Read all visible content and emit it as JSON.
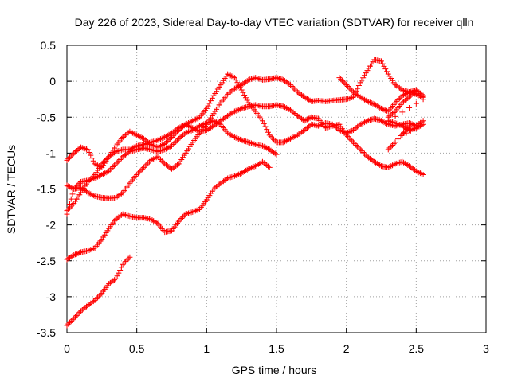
{
  "chart_data": {
    "type": "scatter",
    "title": "Day 226 of 2023, Sidereal Day-to-day VTEC variation (SDTVAR) for receiver qlln",
    "xlabel": "GPS time / hours",
    "ylabel": "SDTVAR / TECUs",
    "xlim": [
      0,
      3
    ],
    "ylim": [
      -3.5,
      0.5
    ],
    "xticks": [
      "0",
      "0.5",
      "1",
      "1.5",
      "2",
      "2.5",
      "3"
    ],
    "yticks": [
      "0.5",
      "0",
      "-0.5",
      "-1",
      "-1.5",
      "-2",
      "-2.5",
      "-3",
      "-3.5"
    ],
    "grid": true,
    "marker": "+",
    "color": "#ff0000",
    "series": [
      {
        "values": [
          [
            0.0,
            -1.1
          ],
          [
            0.05,
            -1.0
          ],
          [
            0.1,
            -0.92
          ],
          [
            0.15,
            -0.95
          ],
          [
            0.2,
            -1.15
          ],
          [
            0.25,
            -1.2
          ],
          [
            0.3,
            -1.05
          ],
          [
            0.35,
            -0.9
          ],
          [
            0.4,
            -0.78
          ],
          [
            0.45,
            -0.7
          ],
          [
            0.5,
            -0.75
          ],
          [
            0.55,
            -0.8
          ],
          [
            0.6,
            -0.88
          ],
          [
            0.65,
            -0.92
          ],
          [
            0.7,
            -0.87
          ],
          [
            0.75,
            -0.78
          ],
          [
            0.8,
            -0.68
          ],
          [
            0.85,
            -0.6
          ],
          [
            0.9,
            -0.55
          ],
          [
            0.95,
            -0.5
          ],
          [
            1.0,
            -0.38
          ],
          [
            1.05,
            -0.2
          ],
          [
            1.1,
            -0.05
          ],
          [
            1.15,
            0.1
          ],
          [
            1.2,
            0.05
          ],
          [
            1.25,
            -0.12
          ],
          [
            1.3,
            -0.3
          ],
          [
            1.35,
            -0.42
          ],
          [
            1.4,
            -0.55
          ],
          [
            1.45,
            -0.75
          ],
          [
            1.5,
            -0.85
          ],
          [
            1.55,
            -0.85
          ],
          [
            1.6,
            -0.8
          ],
          [
            1.65,
            -0.75
          ],
          [
            1.7,
            -0.68
          ],
          [
            1.75,
            -0.6
          ],
          [
            1.8,
            -0.62
          ],
          [
            1.85,
            -0.58
          ],
          [
            1.9,
            -0.6
          ],
          [
            1.95,
            -0.68
          ],
          [
            2.0,
            -0.72
          ],
          [
            2.05,
            -0.68
          ],
          [
            2.1,
            -0.6
          ],
          [
            2.15,
            -0.55
          ],
          [
            2.2,
            -0.52
          ],
          [
            2.25,
            -0.55
          ],
          [
            2.3,
            -0.6
          ],
          [
            2.35,
            -0.62
          ],
          [
            2.4,
            -0.6
          ],
          [
            2.45,
            -0.58
          ],
          [
            2.5,
            -0.62
          ],
          [
            2.55,
            -0.55
          ]
        ]
      },
      {
        "values": [
          [
            0.0,
            -1.45
          ],
          [
            0.05,
            -1.5
          ],
          [
            0.1,
            -1.48
          ],
          [
            0.15,
            -1.55
          ],
          [
            0.2,
            -1.6
          ],
          [
            0.25,
            -1.62
          ],
          [
            0.3,
            -1.63
          ],
          [
            0.35,
            -1.62
          ],
          [
            0.4,
            -1.55
          ],
          [
            0.45,
            -1.42
          ],
          [
            0.5,
            -1.3
          ],
          [
            0.55,
            -1.2
          ],
          [
            0.6,
            -1.1
          ],
          [
            0.65,
            -1.05
          ],
          [
            0.7,
            -1.15
          ],
          [
            0.75,
            -1.22
          ],
          [
            0.8,
            -1.15
          ],
          [
            0.85,
            -1.0
          ],
          [
            0.9,
            -0.85
          ],
          [
            0.95,
            -0.72
          ],
          [
            1.0,
            -0.6
          ],
          [
            1.05,
            -0.45
          ],
          [
            1.1,
            -0.3
          ],
          [
            1.15,
            -0.18
          ],
          [
            1.2,
            -0.1
          ],
          [
            1.25,
            -0.05
          ],
          [
            1.3,
            0.02
          ],
          [
            1.35,
            0.05
          ],
          [
            1.4,
            0.02
          ],
          [
            1.45,
            0.03
          ],
          [
            1.5,
            0.05
          ],
          [
            1.55,
            0.02
          ],
          [
            1.6,
            -0.05
          ],
          [
            1.65,
            -0.15
          ],
          [
            1.7,
            -0.22
          ],
          [
            1.75,
            -0.28
          ],
          [
            1.8,
            -0.27
          ],
          [
            1.85,
            -0.28
          ],
          [
            1.9,
            -0.27
          ],
          [
            1.95,
            -0.26
          ],
          [
            2.0,
            -0.25
          ],
          [
            2.05,
            -0.22
          ],
          [
            2.1,
            -0.02
          ],
          [
            2.15,
            0.15
          ],
          [
            2.2,
            0.3
          ],
          [
            2.25,
            0.28
          ],
          [
            2.3,
            0.1
          ],
          [
            2.35,
            -0.05
          ],
          [
            2.4,
            -0.12
          ],
          [
            2.45,
            -0.15
          ],
          [
            2.5,
            -0.18
          ],
          [
            2.55,
            -0.22
          ]
        ]
      },
      {
        "values": [
          [
            0.0,
            -1.8
          ],
          [
            0.05,
            -1.7
          ],
          [
            0.1,
            -1.55
          ],
          [
            0.15,
            -1.4
          ],
          [
            0.2,
            -1.3
          ],
          [
            0.25,
            -1.15
          ],
          [
            0.3,
            -1.05
          ],
          [
            0.35,
            -0.98
          ],
          [
            0.4,
            -0.95
          ],
          [
            0.45,
            -0.95
          ],
          [
            0.5,
            -0.9
          ],
          [
            0.55,
            -0.88
          ],
          [
            0.6,
            -0.85
          ],
          [
            0.65,
            -0.82
          ],
          [
            0.7,
            -0.78
          ],
          [
            0.75,
            -0.72
          ],
          [
            0.8,
            -0.65
          ],
          [
            0.85,
            -0.6
          ],
          [
            0.9,
            -0.65
          ],
          [
            0.95,
            -0.7
          ],
          [
            1.0,
            -0.68
          ],
          [
            1.05,
            -0.62
          ],
          [
            1.1,
            -0.55
          ],
          [
            1.15,
            -0.48
          ],
          [
            1.2,
            -0.42
          ],
          [
            1.25,
            -0.38
          ],
          [
            1.3,
            -0.35
          ],
          [
            1.35,
            -0.33
          ],
          [
            1.4,
            -0.35
          ],
          [
            1.45,
            -0.35
          ],
          [
            1.5,
            -0.33
          ],
          [
            1.55,
            -0.35
          ],
          [
            1.6,
            -0.4
          ],
          [
            1.65,
            -0.48
          ],
          [
            1.7,
            -0.55
          ],
          [
            1.75,
            -0.5
          ],
          [
            1.8,
            -0.52
          ],
          [
            1.85,
            -0.65
          ],
          [
            1.9,
            -0.62
          ],
          [
            1.95,
            -0.6
          ],
          [
            2.0,
            -0.75
          ],
          [
            2.05,
            -0.85
          ],
          [
            2.1,
            -0.95
          ],
          [
            2.15,
            -1.05
          ],
          [
            2.2,
            -1.12
          ],
          [
            2.25,
            -1.18
          ],
          [
            2.3,
            -1.2
          ],
          [
            2.35,
            -1.15
          ],
          [
            2.4,
            -1.12
          ],
          [
            2.45,
            -1.18
          ],
          [
            2.5,
            -1.25
          ],
          [
            2.55,
            -1.3
          ]
        ]
      },
      {
        "values": [
          [
            0.0,
            -2.48
          ],
          [
            0.05,
            -2.42
          ],
          [
            0.1,
            -2.38
          ],
          [
            0.15,
            -2.36
          ],
          [
            0.2,
            -2.32
          ],
          [
            0.25,
            -2.2
          ],
          [
            0.3,
            -2.05
          ],
          [
            0.35,
            -1.92
          ],
          [
            0.4,
            -1.85
          ],
          [
            0.45,
            -1.88
          ],
          [
            0.5,
            -1.9
          ],
          [
            0.55,
            -1.9
          ],
          [
            0.6,
            -1.92
          ],
          [
            0.65,
            -1.98
          ],
          [
            0.7,
            -2.1
          ],
          [
            0.75,
            -2.08
          ],
          [
            0.8,
            -1.95
          ],
          [
            0.85,
            -1.85
          ],
          [
            0.9,
            -1.82
          ],
          [
            0.95,
            -1.78
          ],
          [
            1.0,
            -1.65
          ],
          [
            1.05,
            -1.5
          ],
          [
            1.1,
            -1.42
          ],
          [
            1.15,
            -1.35
          ],
          [
            1.2,
            -1.32
          ],
          [
            1.25,
            -1.28
          ],
          [
            1.3,
            -1.22
          ],
          [
            1.35,
            -1.18
          ],
          [
            1.4,
            -1.12
          ],
          [
            1.45,
            -1.2
          ]
        ]
      },
      {
        "values": [
          [
            0.0,
            -3.4
          ],
          [
            0.05,
            -3.3
          ],
          [
            0.1,
            -3.2
          ],
          [
            0.15,
            -3.12
          ],
          [
            0.2,
            -3.05
          ],
          [
            0.25,
            -2.95
          ],
          [
            0.3,
            -2.82
          ],
          [
            0.35,
            -2.75
          ],
          [
            0.4,
            -2.55
          ],
          [
            0.45,
            -2.45
          ]
        ]
      },
      {
        "values": [
          [
            0.0,
            -1.85
          ],
          [
            0.05,
            -1.5
          ],
          [
            0.1,
            -1.4
          ],
          [
            0.15,
            -1.38
          ],
          [
            0.2,
            -1.35
          ],
          [
            0.25,
            -1.3
          ],
          [
            0.3,
            -1.25
          ],
          [
            0.35,
            -1.15
          ],
          [
            0.4,
            -1.05
          ],
          [
            0.45,
            -0.98
          ],
          [
            0.5,
            -0.95
          ],
          [
            0.55,
            -0.93
          ],
          [
            0.6,
            -0.95
          ],
          [
            0.65,
            -0.98
          ],
          [
            0.7,
            -0.95
          ],
          [
            0.75,
            -0.9
          ],
          [
            0.8,
            -0.8
          ],
          [
            0.85,
            -0.72
          ],
          [
            0.9,
            -0.68
          ],
          [
            0.95,
            -0.62
          ],
          [
            1.0,
            -0.58
          ],
          [
            1.05,
            -0.55
          ],
          [
            1.1,
            -0.6
          ],
          [
            1.15,
            -0.72
          ],
          [
            1.2,
            -0.78
          ],
          [
            1.25,
            -0.82
          ],
          [
            1.3,
            -0.85
          ],
          [
            1.35,
            -0.88
          ],
          [
            1.4,
            -0.9
          ],
          [
            1.45,
            -0.95
          ],
          [
            1.5,
            -1.02
          ]
        ]
      },
      {
        "values": [
          [
            1.95,
            0.05
          ],
          [
            2.0,
            -0.05
          ],
          [
            2.05,
            -0.15
          ],
          [
            2.1,
            -0.22
          ],
          [
            2.15,
            -0.28
          ],
          [
            2.2,
            -0.32
          ],
          [
            2.25,
            -0.38
          ],
          [
            2.3,
            -0.42
          ],
          [
            2.35,
            -0.3
          ],
          [
            2.4,
            -0.2
          ],
          [
            2.45,
            -0.15
          ],
          [
            2.5,
            -0.12
          ],
          [
            2.55,
            -0.2
          ]
        ]
      },
      {
        "values": [
          [
            2.3,
            -0.5
          ],
          [
            2.35,
            -0.42
          ],
          [
            2.4,
            -0.3
          ],
          [
            2.45,
            -0.22
          ],
          [
            2.5,
            -0.12
          ],
          [
            2.55,
            -0.25
          ],
          [
            2.3,
            -0.55
          ],
          [
            2.35,
            -0.58
          ],
          [
            2.4,
            -0.62
          ],
          [
            2.45,
            -0.68
          ],
          [
            2.5,
            -0.65
          ],
          [
            2.55,
            -0.6
          ],
          [
            2.4,
            -0.75
          ],
          [
            2.45,
            -0.62
          ],
          [
            2.35,
            -0.85
          ],
          [
            2.3,
            -0.95
          ]
        ]
      }
    ]
  }
}
